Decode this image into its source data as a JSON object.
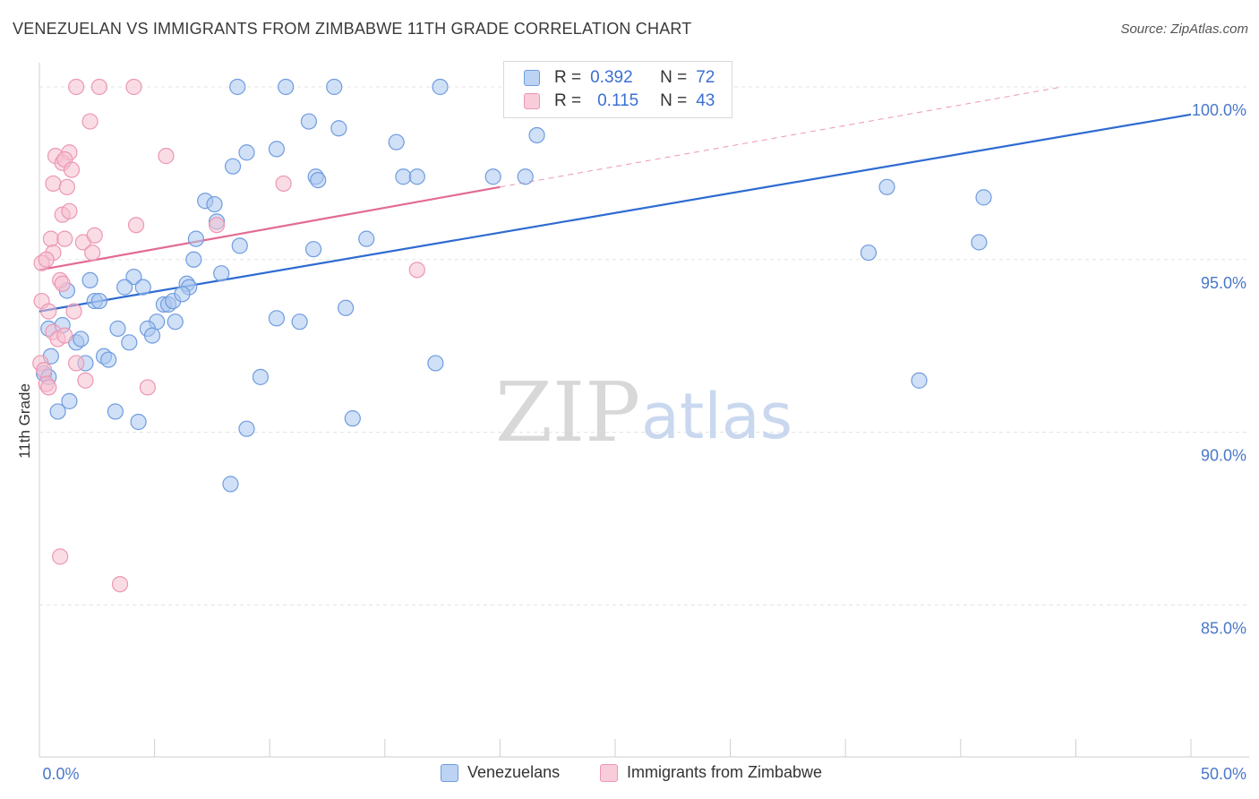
{
  "title": "VENEZUELAN VS IMMIGRANTS FROM ZIMBABWE 11TH GRADE CORRELATION CHART",
  "source": "Source: ZipAtlas.com",
  "watermark": {
    "zip": "ZIP",
    "atlas": "atlas"
  },
  "legend": {
    "rows": [
      {
        "r_label": "R =",
        "r_value": "0.392",
        "n_label": "N =",
        "n_value": "72"
      },
      {
        "r_label": "R =",
        "r_value": "0.115",
        "n_label": "N =",
        "n_value": "43"
      }
    ]
  },
  "bottom_legend": [
    "Venezuelans",
    "Immigrants from Zimbabwe"
  ],
  "chart_data": {
    "type": "scatter",
    "title": "VENEZUELAN VS IMMIGRANTS FROM ZIMBABWE 11TH GRADE CORRELATION CHART",
    "xlabel": "",
    "ylabel": "11th Grade",
    "xlim": [
      0,
      50
    ],
    "ylim": [
      80.6,
      100.7
    ],
    "x_tick_labels": [
      "0.0%",
      "50.0%"
    ],
    "y_ticks": [
      85,
      90,
      95,
      100
    ],
    "y_tick_labels": [
      "85.0%",
      "90.0%",
      "95.0%",
      "100.0%"
    ],
    "grid": true,
    "colors": {
      "venezuelans_fill": "#a9c6ee",
      "venezuelans_stroke": "#6f9ce0",
      "venezuelans_line": "#2e6bd1",
      "zimbabwe_fill": "#f6bfd0",
      "zimbabwe_stroke": "#ec97b3",
      "zimbabwe_line": "#e26a93",
      "tick_text": "#4a78c8"
    },
    "series": [
      {
        "name": "Venezuelans",
        "R": 0.392,
        "N": 72,
        "trend": {
          "x": [
            0,
            50
          ],
          "y": [
            93.5,
            99.2
          ],
          "style": "solid"
        },
        "points": [
          {
            "x": 8.6,
            "y": 100
          },
          {
            "x": 10.7,
            "y": 100
          },
          {
            "x": 12.8,
            "y": 100
          },
          {
            "x": 17.4,
            "y": 100
          },
          {
            "x": 11.7,
            "y": 99.0
          },
          {
            "x": 13.0,
            "y": 98.8
          },
          {
            "x": 15.5,
            "y": 98.4
          },
          {
            "x": 21.6,
            "y": 98.6
          },
          {
            "x": 9.0,
            "y": 98.1
          },
          {
            "x": 10.3,
            "y": 98.2
          },
          {
            "x": 8.4,
            "y": 97.7
          },
          {
            "x": 12.0,
            "y": 97.4
          },
          {
            "x": 12.1,
            "y": 97.3
          },
          {
            "x": 15.8,
            "y": 97.4
          },
          {
            "x": 16.4,
            "y": 97.4
          },
          {
            "x": 19.7,
            "y": 97.4
          },
          {
            "x": 21.1,
            "y": 97.4
          },
          {
            "x": 7.2,
            "y": 96.7
          },
          {
            "x": 7.6,
            "y": 96.6
          },
          {
            "x": 7.7,
            "y": 96.1
          },
          {
            "x": 36.8,
            "y": 97.1
          },
          {
            "x": 41.0,
            "y": 96.8
          },
          {
            "x": 6.8,
            "y": 95.6
          },
          {
            "x": 8.7,
            "y": 95.4
          },
          {
            "x": 14.2,
            "y": 95.6
          },
          {
            "x": 11.9,
            "y": 95.3
          },
          {
            "x": 6.7,
            "y": 95.0
          },
          {
            "x": 40.8,
            "y": 95.5
          },
          {
            "x": 36.0,
            "y": 95.2
          },
          {
            "x": 2.2,
            "y": 94.4
          },
          {
            "x": 4.1,
            "y": 94.5
          },
          {
            "x": 7.9,
            "y": 94.6
          },
          {
            "x": 1.2,
            "y": 94.1
          },
          {
            "x": 3.7,
            "y": 94.2
          },
          {
            "x": 4.5,
            "y": 94.2
          },
          {
            "x": 6.4,
            "y": 94.3
          },
          {
            "x": 6.5,
            "y": 94.2
          },
          {
            "x": 2.4,
            "y": 93.8
          },
          {
            "x": 2.6,
            "y": 93.8
          },
          {
            "x": 5.4,
            "y": 93.7
          },
          {
            "x": 5.6,
            "y": 93.7
          },
          {
            "x": 5.8,
            "y": 93.8
          },
          {
            "x": 6.2,
            "y": 94.0
          },
          {
            "x": 13.3,
            "y": 93.6
          },
          {
            "x": 5.1,
            "y": 93.2
          },
          {
            "x": 5.9,
            "y": 93.2
          },
          {
            "x": 10.3,
            "y": 93.3
          },
          {
            "x": 11.3,
            "y": 93.2
          },
          {
            "x": 0.4,
            "y": 93.0
          },
          {
            "x": 1.0,
            "y": 93.1
          },
          {
            "x": 3.4,
            "y": 93.0
          },
          {
            "x": 4.7,
            "y": 93.0
          },
          {
            "x": 4.9,
            "y": 92.8
          },
          {
            "x": 1.6,
            "y": 92.6
          },
          {
            "x": 1.8,
            "y": 92.7
          },
          {
            "x": 3.9,
            "y": 92.6
          },
          {
            "x": 0.5,
            "y": 92.2
          },
          {
            "x": 2.0,
            "y": 92.0
          },
          {
            "x": 2.8,
            "y": 92.2
          },
          {
            "x": 3.0,
            "y": 92.1
          },
          {
            "x": 0.2,
            "y": 91.7
          },
          {
            "x": 0.4,
            "y": 91.6
          },
          {
            "x": 17.2,
            "y": 92.0
          },
          {
            "x": 9.6,
            "y": 91.6
          },
          {
            "x": 38.2,
            "y": 91.5
          },
          {
            "x": 1.3,
            "y": 90.9
          },
          {
            "x": 0.8,
            "y": 90.6
          },
          {
            "x": 3.3,
            "y": 90.6
          },
          {
            "x": 13.6,
            "y": 90.4
          },
          {
            "x": 4.3,
            "y": 90.3
          },
          {
            "x": 9.0,
            "y": 90.1
          },
          {
            "x": 8.3,
            "y": 88.5
          }
        ]
      },
      {
        "name": "Immigrants from Zimbabwe",
        "R": 0.115,
        "N": 43,
        "trend": {
          "x": [
            0,
            20
          ],
          "y": [
            94.7,
            97.1
          ],
          "style": "solid",
          "dashed_extension": {
            "x": [
              20,
              44.4
            ],
            "y": [
              97.1,
              100
            ]
          }
        },
        "points": [
          {
            "x": 1.6,
            "y": 100
          },
          {
            "x": 2.6,
            "y": 100
          },
          {
            "x": 4.1,
            "y": 100
          },
          {
            "x": 2.2,
            "y": 99.0
          },
          {
            "x": 0.7,
            "y": 98.0
          },
          {
            "x": 1.3,
            "y": 98.1
          },
          {
            "x": 1.0,
            "y": 97.8
          },
          {
            "x": 1.1,
            "y": 97.9
          },
          {
            "x": 1.4,
            "y": 97.6
          },
          {
            "x": 5.5,
            "y": 98.0
          },
          {
            "x": 10.6,
            "y": 97.2
          },
          {
            "x": 0.6,
            "y": 97.2
          },
          {
            "x": 1.2,
            "y": 97.1
          },
          {
            "x": 1.0,
            "y": 96.3
          },
          {
            "x": 1.3,
            "y": 96.4
          },
          {
            "x": 4.2,
            "y": 96.0
          },
          {
            "x": 7.7,
            "y": 96.0
          },
          {
            "x": 0.5,
            "y": 95.6
          },
          {
            "x": 1.1,
            "y": 95.6
          },
          {
            "x": 1.9,
            "y": 95.5
          },
          {
            "x": 2.4,
            "y": 95.7
          },
          {
            "x": 0.6,
            "y": 95.2
          },
          {
            "x": 2.3,
            "y": 95.2
          },
          {
            "x": 0.1,
            "y": 94.9
          },
          {
            "x": 0.3,
            "y": 95.0
          },
          {
            "x": 16.4,
            "y": 94.7
          },
          {
            "x": 0.9,
            "y": 94.4
          },
          {
            "x": 1.0,
            "y": 94.3
          },
          {
            "x": 0.1,
            "y": 93.8
          },
          {
            "x": 0.4,
            "y": 93.5
          },
          {
            "x": 1.5,
            "y": 93.5
          },
          {
            "x": 0.6,
            "y": 92.9
          },
          {
            "x": 0.8,
            "y": 92.7
          },
          {
            "x": 1.1,
            "y": 92.8
          },
          {
            "x": 1.6,
            "y": 92.0
          },
          {
            "x": 0.05,
            "y": 92.0
          },
          {
            "x": 0.2,
            "y": 91.8
          },
          {
            "x": 0.3,
            "y": 91.4
          },
          {
            "x": 0.4,
            "y": 91.3
          },
          {
            "x": 2.0,
            "y": 91.5
          },
          {
            "x": 4.7,
            "y": 91.3
          },
          {
            "x": 0.9,
            "y": 86.4
          },
          {
            "x": 3.5,
            "y": 85.6
          }
        ]
      }
    ]
  }
}
